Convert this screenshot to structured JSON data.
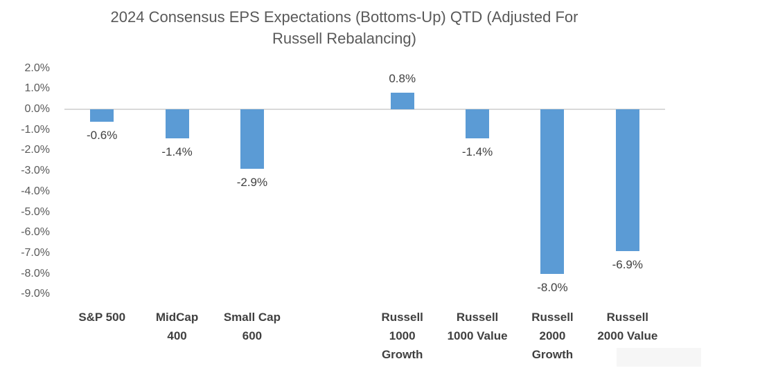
{
  "title_display": "2024 Consensus EPS Expectations (Bottoms-Up) QTD (Adjusted For\nRussell Rebalancing)",
  "chart_data": {
    "type": "bar",
    "title": "2024 Consensus EPS Expectations (Bottoms-Up) QTD (Adjusted For Russell Rebalancing)",
    "categories": [
      "S&P 500",
      "MidCap 400",
      "Small Cap 600",
      "",
      "Russell 1000 Growth",
      "Russell 1000 Value",
      "Russell 2000 Growth",
      "Russell 2000 Value"
    ],
    "categories_display": [
      "S&P 500",
      "MidCap\n400",
      "Small Cap\n600",
      "",
      "Russell\n1000\nGrowth",
      "Russell\n1000 Value",
      "Russell\n2000\nGrowth",
      "Russell\n2000 Value"
    ],
    "values": [
      -0.6,
      -1.4,
      -2.9,
      null,
      0.8,
      -1.4,
      -8.0,
      -6.9
    ],
    "data_labels": [
      "-0.6%",
      "-1.4%",
      "-2.9%",
      null,
      "0.8%",
      "-1.4%",
      "-8.0%",
      "-6.9%"
    ],
    "y_ticks": [
      "2.0%",
      "1.0%",
      "0.0%",
      "-1.0%",
      "-2.0%",
      "-3.0%",
      "-4.0%",
      "-5.0%",
      "-6.0%",
      "-7.0%",
      "-8.0%",
      "-9.0%"
    ],
    "ylim": [
      -9.0,
      2.0
    ],
    "xlabel": "",
    "ylabel": "",
    "grid": "zero-line-only",
    "legend": "none",
    "bar_color": "#5B9BD5",
    "axis_line_color": "#D9D9D9",
    "title_color": "#595959",
    "tick_color": "#595959",
    "label_color": "#404040"
  }
}
